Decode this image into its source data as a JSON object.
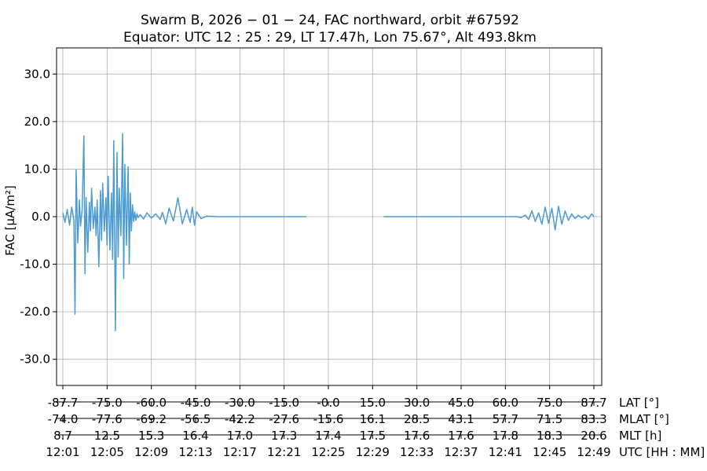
{
  "chart_data": {
    "type": "line",
    "title_line1": "Swarm B,  2026 − 01 − 24,  FAC northward,  orbit #67592",
    "title_line2": "Equator:  UTC 12 : 25 : 29,  LT 17.47h,  Lon 75.67°,  Alt 493.8km",
    "ylabel": "FAC [µA/m²]",
    "ylim": [
      -35.5,
      35.5
    ],
    "yticks": [
      -30,
      -20,
      -10,
      0,
      10,
      20,
      30
    ],
    "ytick_labels": [
      "-30.0",
      "-20.0",
      "-10.0",
      "0.0",
      "10.0",
      "20.0",
      "30.0"
    ],
    "xlim": [
      0,
      48
    ],
    "grid": true,
    "line_color": "#4c9bd0",
    "x_axes": [
      {
        "label": "LAT [°]",
        "ticks": [
          "-87.7",
          "-75.0",
          "-60.0",
          "-45.0",
          "-30.0",
          "-15.0",
          "-0.0",
          "15.0",
          "30.0",
          "45.0",
          "60.0",
          "75.0",
          "87.7"
        ]
      },
      {
        "label": "MLAT [°]",
        "ticks": [
          "-74.0",
          "-77.6",
          "-69.2",
          "-56.5",
          "-42.2",
          "-27.6",
          "-15.6",
          "16.1",
          "28.5",
          "43.1",
          "57.7",
          "71.5",
          "83.3"
        ]
      },
      {
        "label": "MLT [h]",
        "ticks": [
          "8.7",
          "12.5",
          "15.3",
          "16.4",
          "17.0",
          "17.3",
          "17.4",
          "17.5",
          "17.6",
          "17.6",
          "17.8",
          "18.3",
          "20.6"
        ]
      },
      {
        "label": "UTC [HH : MM]",
        "ticks": [
          "12:01",
          "12:05",
          "12:09",
          "12:13",
          "12:17",
          "12:21",
          "12:25",
          "12:29",
          "12:33",
          "12:37",
          "12:41",
          "12:45",
          "12:49"
        ]
      }
    ],
    "x_tick_minutes": [
      0,
      4,
      8,
      12,
      16,
      20,
      24,
      28,
      32,
      36,
      40,
      44,
      48
    ],
    "segments": [
      {
        "x": [
          0.0,
          0.2,
          0.4,
          0.6,
          0.8,
          1.0,
          1.1,
          1.2,
          1.35,
          1.5,
          1.6,
          1.75,
          1.9,
          2.0,
          2.1,
          2.25,
          2.4,
          2.5,
          2.6,
          2.75,
          2.9,
          3.0,
          3.1,
          3.25,
          3.4,
          3.5,
          3.6,
          3.75,
          3.9,
          4.0,
          4.1,
          4.25,
          4.4,
          4.5,
          4.6,
          4.75,
          4.9,
          5.0,
          5.1,
          5.25,
          5.4,
          5.5,
          5.6,
          5.75,
          5.9,
          6.0,
          6.1,
          6.2,
          6.3,
          6.4,
          6.5,
          6.6,
          6.7,
          6.8,
          7.0,
          7.3,
          7.6,
          8.0,
          8.4,
          8.8,
          9.0,
          9.3,
          9.6,
          10.0,
          10.4,
          10.8,
          11.2,
          11.5,
          11.7,
          11.9,
          12.1,
          12.5,
          13.0,
          14.0,
          16.0,
          18.0,
          20.0,
          22.0
        ],
        "y": [
          0.8,
          -1.2,
          1.5,
          -1.8,
          2.0,
          -0.8,
          -20.5,
          9.8,
          -5.5,
          3.5,
          -2.0,
          1.5,
          17.0,
          -12.0,
          4.0,
          -7.5,
          3.0,
          -3.0,
          6.0,
          -2.5,
          2.0,
          -4.0,
          3.5,
          -10.5,
          5.5,
          -5.0,
          7.0,
          -3.0,
          4.0,
          -6.0,
          8.5,
          -7.0,
          5.0,
          -9.0,
          16.0,
          -24.0,
          13.5,
          -8.5,
          6.0,
          -4.0,
          17.5,
          -13.0,
          11.0,
          -6.0,
          10.5,
          -10.0,
          5.0,
          -3.0,
          2.5,
          -1.0,
          1.0,
          -0.8,
          0.6,
          -0.2,
          0.4,
          -0.5,
          0.8,
          -0.3,
          0.6,
          -0.6,
          0.9,
          -1.5,
          1.8,
          -0.9,
          4.0,
          -1.5,
          1.5,
          -1.2,
          2.0,
          -1.8,
          1.0,
          -0.4,
          0.1,
          0.0,
          0.0,
          0.0,
          0.0,
          0.0
        ]
      },
      {
        "x": [
          29.0,
          32.0,
          36.0,
          40.0,
          41.0,
          41.4,
          41.8,
          42.1,
          42.4,
          42.7,
          43.0,
          43.3,
          43.6,
          43.9,
          44.2,
          44.5,
          44.8,
          45.1,
          45.4,
          45.7,
          46.0,
          46.3,
          46.6,
          46.9,
          47.2,
          47.5,
          47.8,
          48.0
        ],
        "y": [
          0.0,
          0.0,
          0.0,
          0.0,
          0.0,
          -0.2,
          0.3,
          -0.6,
          1.2,
          -1.0,
          0.8,
          -1.6,
          2.0,
          -1.4,
          1.8,
          -2.8,
          2.2,
          -1.6,
          1.2,
          -0.8,
          0.6,
          -0.4,
          0.3,
          -0.3,
          0.2,
          -0.5,
          0.6,
          0.0
        ]
      }
    ]
  }
}
